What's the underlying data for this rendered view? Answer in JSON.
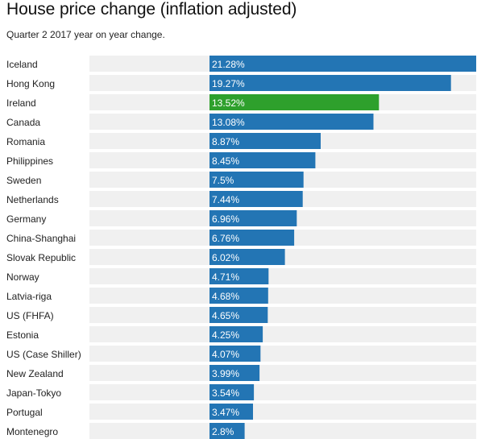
{
  "chart_data": {
    "type": "bar",
    "orientation": "horizontal",
    "title": "House price change (inflation adjusted)",
    "subtitle": "Quarter 2 2017 year on year change.",
    "categories": [
      "Iceland",
      "Hong Kong",
      "Ireland",
      "Canada",
      "Romania",
      "Philippines",
      "Sweden",
      "Netherlands",
      "Germany",
      "China-Shanghai",
      "Slovak Republic",
      "Norway",
      "Latvia-riga",
      "US (FHFA)",
      "Estonia",
      "US (Case Shiller)",
      "New Zealand",
      "Japan-Tokyo",
      "Portugal",
      "Montenegro"
    ],
    "values": [
      21.28,
      19.27,
      13.52,
      13.08,
      8.87,
      8.45,
      7.5,
      7.44,
      6.96,
      6.76,
      6.02,
      4.71,
      4.68,
      4.65,
      4.25,
      4.07,
      3.99,
      3.54,
      3.47,
      2.8
    ],
    "value_labels": [
      "21.28%",
      "19.27%",
      "13.52%",
      "13.08%",
      "8.87%",
      "8.45%",
      "7.5%",
      "7.44%",
      "6.96%",
      "6.76%",
      "6.02%",
      "4.71%",
      "4.68%",
      "4.65%",
      "4.25%",
      "4.07%",
      "3.99%",
      "3.54%",
      "3.47%",
      "2.8%"
    ],
    "highlight_category": "Ireland",
    "colors": {
      "bar": "#2375b4",
      "highlight": "#2ea02c",
      "track": "#f0f0f0"
    },
    "xlim": [
      0,
      21.28
    ]
  }
}
